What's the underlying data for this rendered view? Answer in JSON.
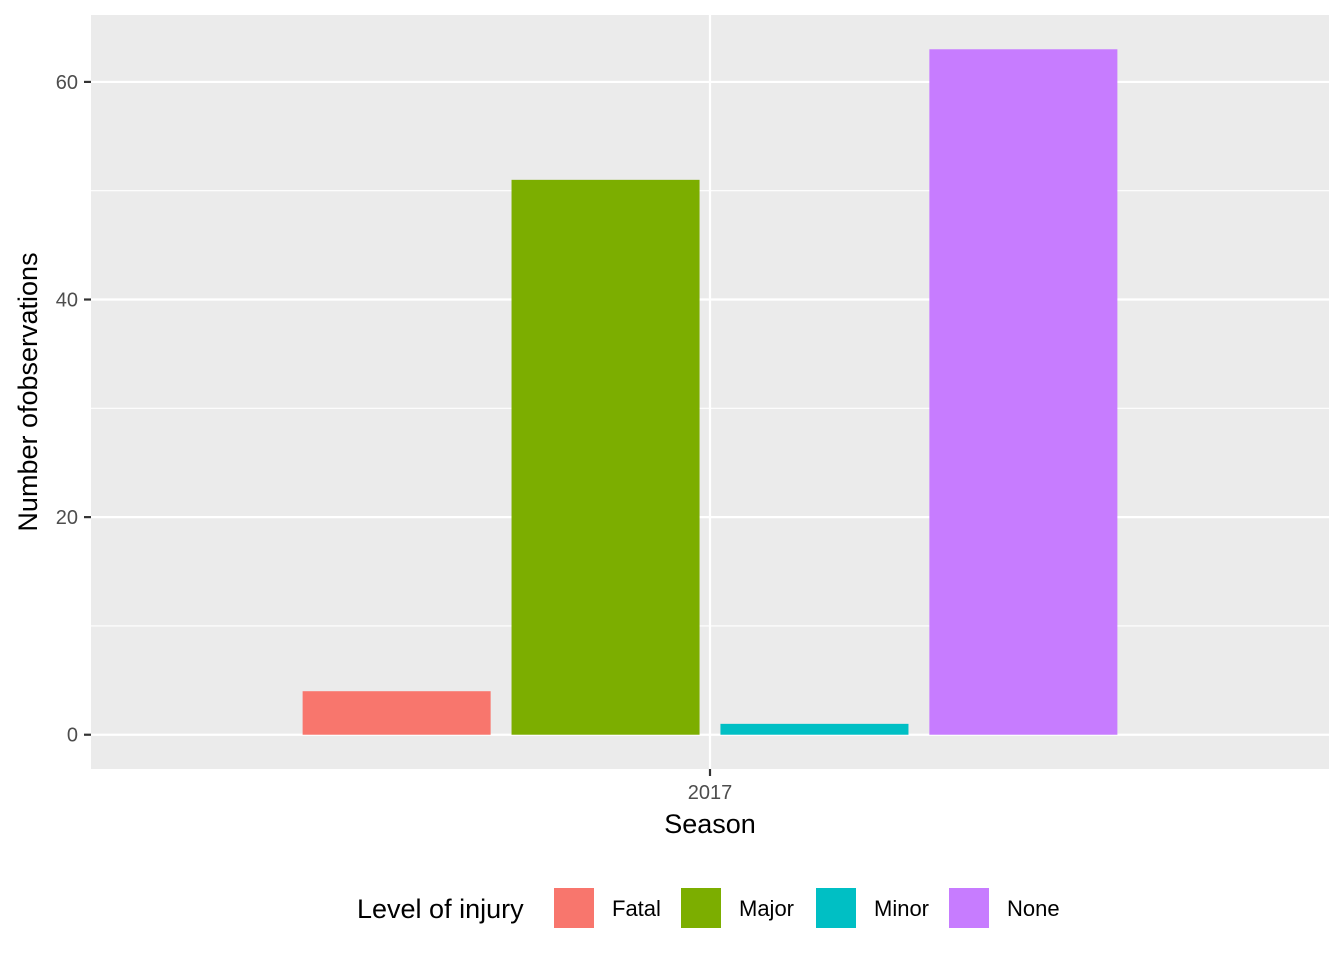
{
  "chart_data": {
    "type": "bar",
    "categories": [
      "2017"
    ],
    "series": [
      {
        "name": "Fatal",
        "values": [
          4
        ],
        "color": "#F8766D"
      },
      {
        "name": "Major",
        "values": [
          51
        ],
        "color": "#7CAE00"
      },
      {
        "name": "Minor",
        "values": [
          1
        ],
        "color": "#00BFC4"
      },
      {
        "name": "None",
        "values": [
          63
        ],
        "color": "#C77CFF"
      }
    ],
    "title": "",
    "xlabel": "Season",
    "ylabel": "Number ofobservations",
    "ylim": [
      -3.15,
      66.15
    ],
    "yticks": [
      0,
      20,
      40,
      60
    ],
    "yticks_minor": [
      10,
      30,
      50
    ],
    "grid": true,
    "legend": {
      "title": "Level of injury",
      "position": "bottom"
    },
    "panel_background": "#EBEBEB",
    "grid_color": "#FFFFFF"
  }
}
